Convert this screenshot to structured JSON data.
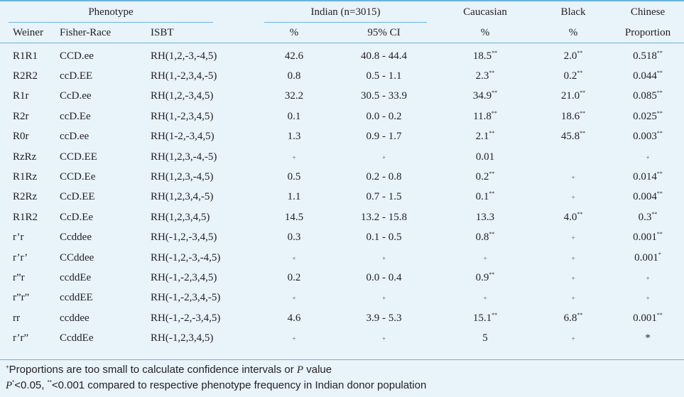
{
  "headers": {
    "phenotype": "Phenotype",
    "indian": "Indian (n=3015)",
    "caucasian": "Caucasian",
    "black": "Black",
    "chinese": "Chinese",
    "weiner": "Weiner",
    "fisher_race": "Fisher-Race",
    "isbt": "ISBT",
    "pct1": "%",
    "ci": "95% CI",
    "pct2": "%",
    "pct3": "%",
    "proportion": "Proportion"
  },
  "rows": [
    {
      "weiner": "R1R1",
      "fisher": "CCD.ee",
      "isbt": "RH(1,2,-3,-4,5)",
      "ind_pct": "42.6",
      "ind_ci": "40.8 - 44.4",
      "cau": "18.5",
      "cau_sup": "**",
      "blk": "2.0",
      "blk_sup": "**",
      "chi": "0.518",
      "chi_sup": "**"
    },
    {
      "weiner": "R2R2",
      "fisher": "ccD.EE",
      "isbt": "RH(1,-2,3,4,-5)",
      "ind_pct": "0.8",
      "ind_ci": "0.5 - 1.1",
      "cau": "2.3",
      "cau_sup": "**",
      "blk": "0.2",
      "blk_sup": "**",
      "chi": "0.044",
      "chi_sup": "**"
    },
    {
      "weiner": "R1r",
      "fisher": "CcD.ee",
      "isbt": "RH(1,2,-3,4,5)",
      "ind_pct": "32.2",
      "ind_ci": "30.5 - 33.9",
      "cau": "34.9",
      "cau_sup": "**",
      "blk": "21.0",
      "blk_sup": "**",
      "chi": "0.085",
      "chi_sup": "**"
    },
    {
      "weiner": "R2r",
      "fisher": "ccD.Ee",
      "isbt": "RH(1,-2,3,4,5)",
      "ind_pct": "0.1",
      "ind_ci": "0.0 - 0.2",
      "cau": "11.8",
      "cau_sup": "**",
      "blk": "18.6",
      "blk_sup": "**",
      "chi": "0.025",
      "chi_sup": "**"
    },
    {
      "weiner": "R0r",
      "fisher": "ccD.ee",
      "isbt": "RH(1-2,-3,4,5)",
      "ind_pct": "1.3",
      "ind_ci": "0.9 - 1.7",
      "cau": "2.1",
      "cau_sup": "**",
      "blk": "45.8",
      "blk_sup": "**",
      "chi": "0.003",
      "chi_sup": "**"
    },
    {
      "weiner": "RzRz",
      "fisher": "CCD.EE",
      "isbt": "RH(1,2,3,-4,-5)",
      "ind_pct": "+",
      "ind_ci": "+",
      "cau": "0.01",
      "cau_sup": "",
      "blk": "",
      "blk_sup": "",
      "chi": "+",
      "chi_sup": ""
    },
    {
      "weiner": "R1Rz",
      "fisher": "CCD.Ee",
      "isbt": "RH(1,2,3,-4,5)",
      "ind_pct": "0.5",
      "ind_ci": "0.2 - 0.8",
      "cau": "0.2",
      "cau_sup": "**",
      "blk": "+",
      "blk_sup": "",
      "chi": "0.014",
      "chi_sup": "**"
    },
    {
      "weiner": "R2Rz",
      "fisher": "CcD.EE",
      "isbt": "RH(1,2,3,4,-5)",
      "ind_pct": "1.1",
      "ind_ci": "0.7 - 1.5",
      "cau": "0.1",
      "cau_sup": "**",
      "blk": "+",
      "blk_sup": "",
      "chi": "0.004",
      "chi_sup": "**"
    },
    {
      "weiner": "R1R2",
      "fisher": "CcD.Ee",
      "isbt": "RH(1,2,3,4,5)",
      "ind_pct": "14.5",
      "ind_ci": "13.2 - 15.8",
      "cau": "13.3",
      "cau_sup": "",
      "blk": "4.0",
      "blk_sup": "**",
      "chi": "0.3",
      "chi_sup": "**"
    },
    {
      "weiner": "r’r",
      "fisher": "Ccddee",
      "isbt": "RH(-1,2,-3,4,5)",
      "ind_pct": "0.3",
      "ind_ci": "0.1 - 0.5",
      "cau": "0.8",
      "cau_sup": "**",
      "blk": "+",
      "blk_sup": "",
      "chi": "0.001",
      "chi_sup": "**"
    },
    {
      "weiner": "r’r’",
      "fisher": "CCddee",
      "isbt": "RH(-1,2,-3,-4,5)",
      "ind_pct": "+",
      "ind_ci": "+",
      "cau": "+",
      "cau_sup": "",
      "blk": "+",
      "blk_sup": "",
      "chi": "0.001",
      "chi_sup": "*"
    },
    {
      "weiner": "r”r",
      "fisher": "ccddEe",
      "isbt": "RH(-1,-2,3,4,5)",
      "ind_pct": "0.2",
      "ind_ci": "0.0 - 0.4",
      "cau": "0.9",
      "cau_sup": "**",
      "blk": "+",
      "blk_sup": "",
      "chi": "+",
      "chi_sup": ""
    },
    {
      "weiner": "r”r”",
      "fisher": "ccddEE",
      "isbt": "RH(-1,-2,3,4,-5)",
      "ind_pct": "+",
      "ind_ci": "+",
      "cau": "+",
      "cau_sup": "",
      "blk": "+",
      "blk_sup": "",
      "chi": "+",
      "chi_sup": ""
    },
    {
      "weiner": "rr",
      "fisher": "ccddee",
      "isbt": "RH(-1,-2,-3,4,5)",
      "ind_pct": "4.6",
      "ind_ci": "3.9 - 5.3",
      "cau": "15.1",
      "cau_sup": "**",
      "blk": "6.8",
      "blk_sup": "**",
      "chi": "0.001",
      "chi_sup": "**"
    },
    {
      "weiner": "r’r”",
      "fisher": "CcddEe",
      "isbt": "RH(-1,2,3,4,5)",
      "ind_pct": "+",
      "ind_ci": "+",
      "cau": "5",
      "cau_sup": "",
      "blk": "+",
      "blk_sup": "",
      "chi": "*",
      "chi_sup": ""
    }
  ],
  "notes": {
    "note1_sup": "+",
    "note1_text": "Proportions are too small to calculate confidence intervals or ",
    "note1_p": "P",
    "note1_end": " value",
    "note2_p": "P",
    "note2_sup1": "*",
    "note2_mid": "<0.05, ",
    "note2_sup2": "**",
    "note2_end": "<0.001 compared to respective phenotype frequency in Indian donor population"
  }
}
